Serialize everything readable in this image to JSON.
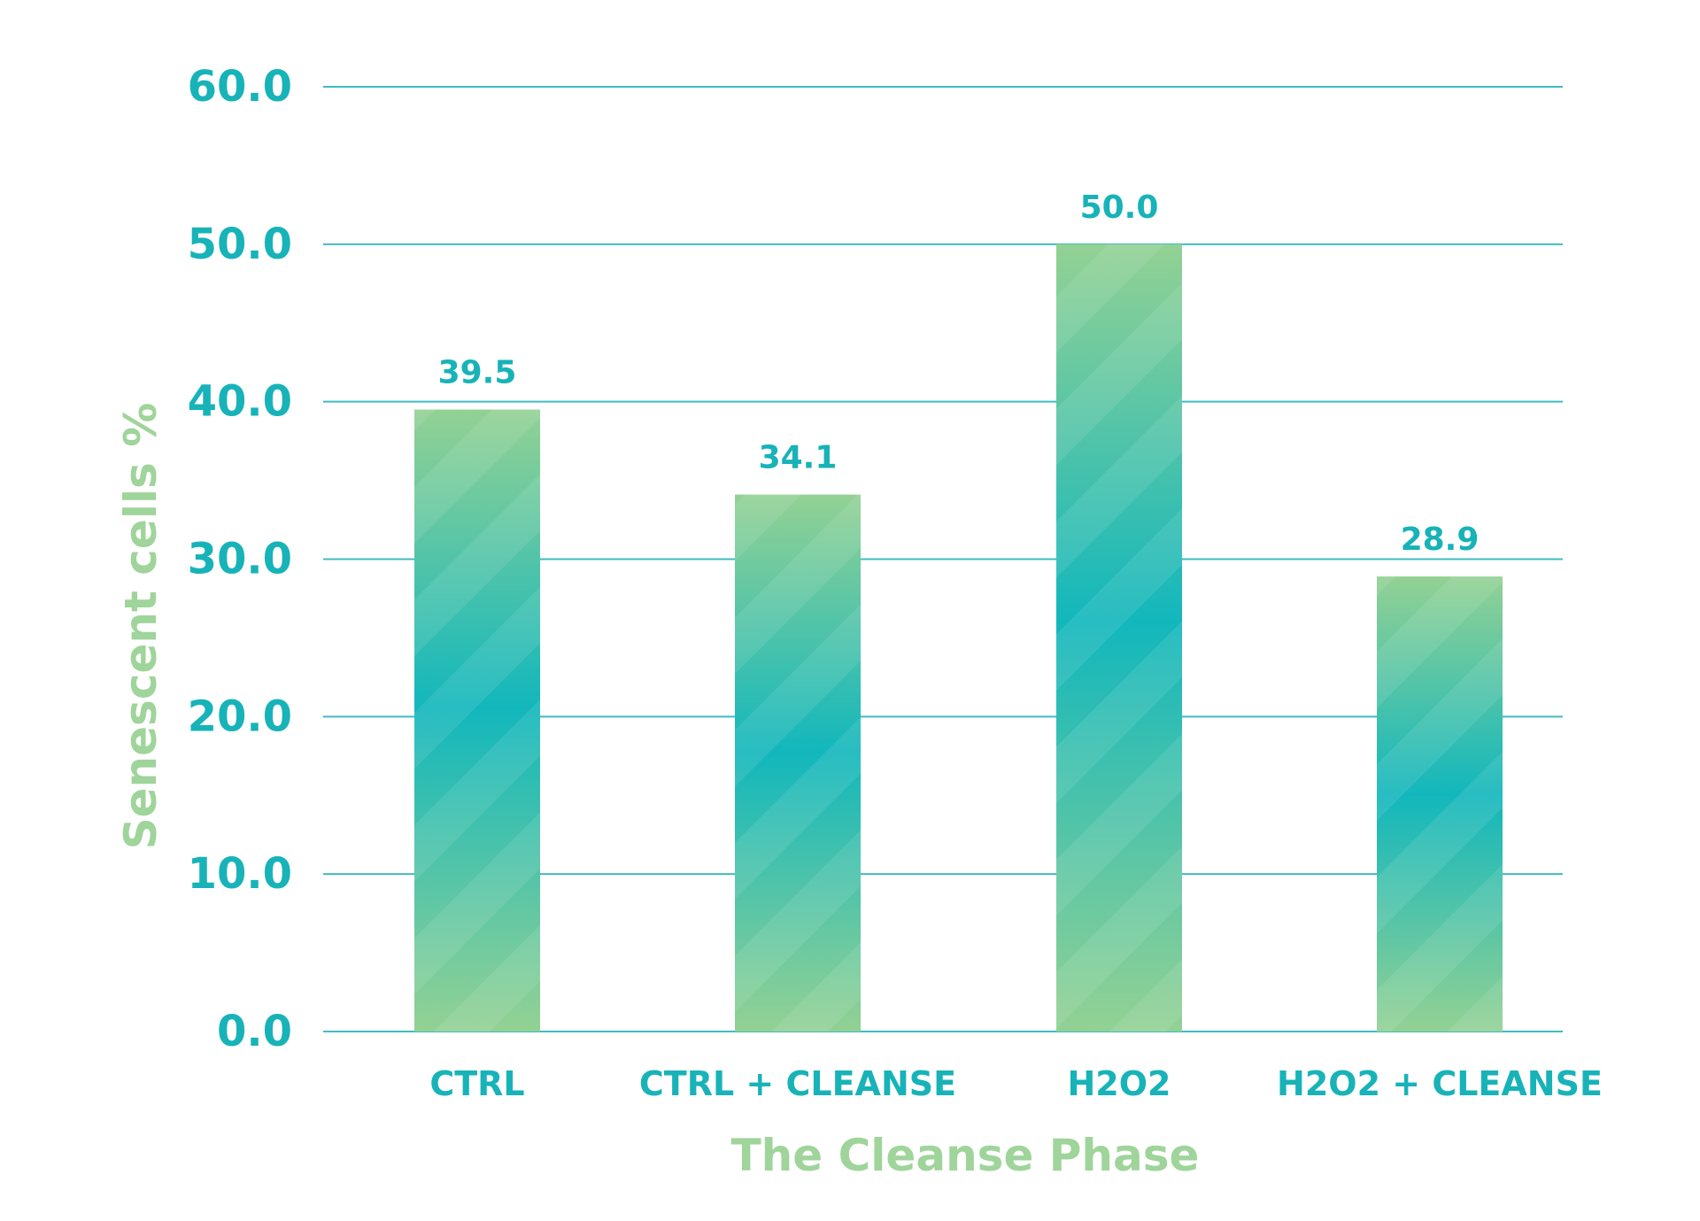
{
  "chart_data": {
    "type": "bar",
    "title": "",
    "xlabel": "The Cleanse Phase",
    "ylabel": "Senescent cells %",
    "categories": [
      "CTRL",
      "CTRL + CLEANSE",
      "H2O2",
      "H2O2 + CLEANSE"
    ],
    "values": [
      39.5,
      34.1,
      50.0,
      28.9
    ],
    "data_labels": [
      "39.5",
      "34.1",
      "50.0",
      "28.9"
    ],
    "ylim": [
      0,
      60
    ],
    "yticks": [
      0,
      10,
      20,
      30,
      40,
      50,
      60
    ],
    "ytick_labels": [
      "0.0",
      "10.0",
      "20.0",
      "30.0",
      "40.0",
      "50.0",
      "60.0"
    ],
    "grid": true,
    "legend": "none",
    "colors": {
      "tick_text": "#17b3b8",
      "axis_title": "#9fd49a",
      "gridline": "#3fbcc1",
      "bar_top": "#93d194",
      "bar_mid": "#12b7bc"
    }
  }
}
